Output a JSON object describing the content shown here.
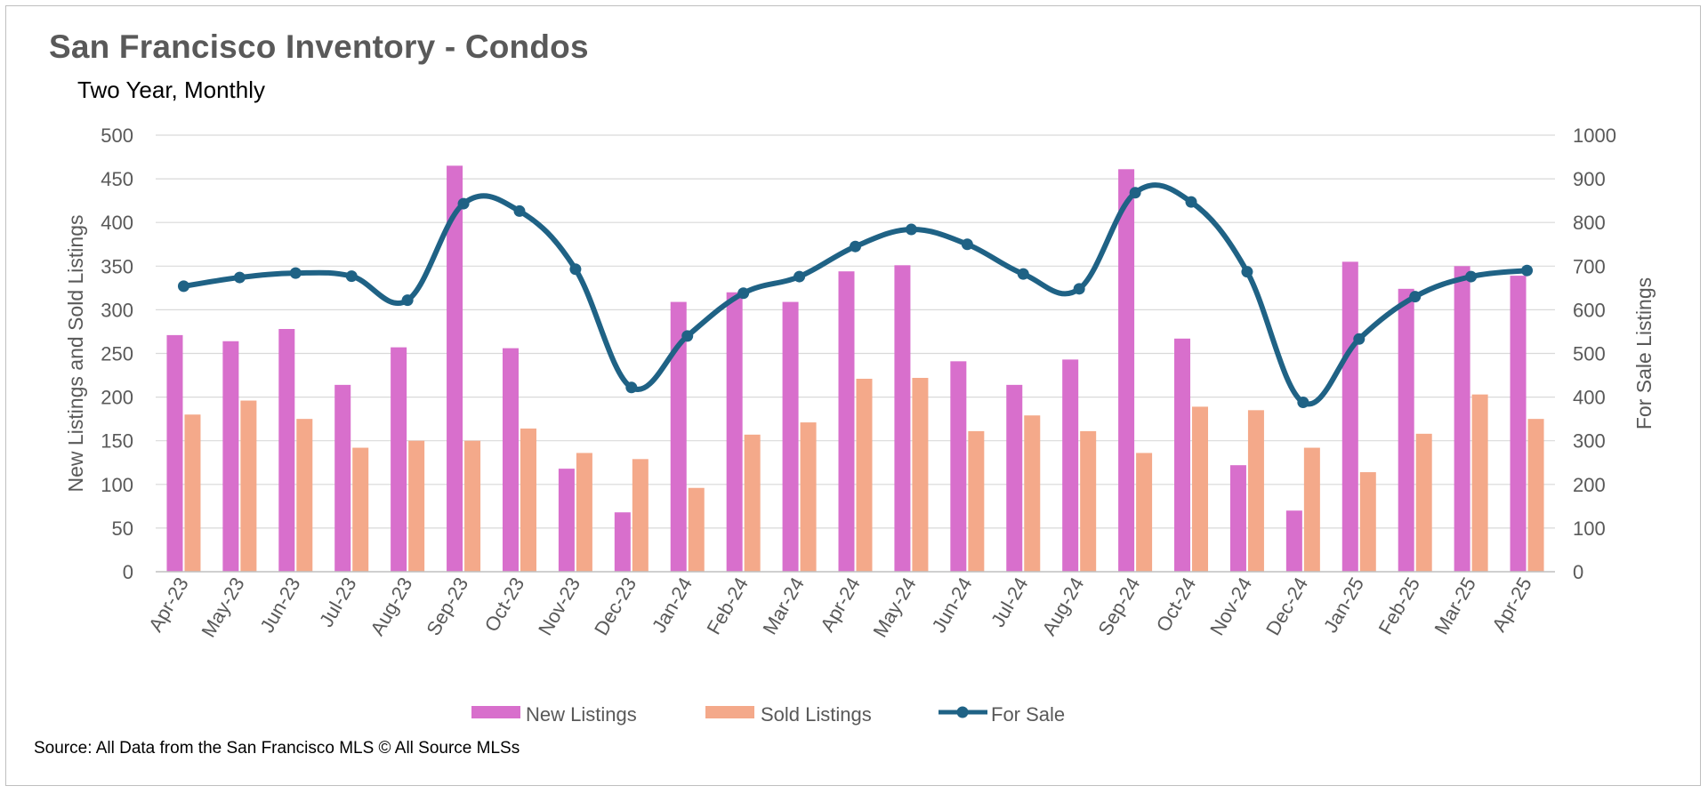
{
  "header": {
    "title": "San Francisco  Inventory - Condos",
    "subtitle": "Two Year, Monthly"
  },
  "footer": {
    "source": "Source: All Data from the San Francisco MLS © All Source MLSs"
  },
  "colors": {
    "new_listings": "#d86fcc",
    "sold_listings": "#f4a98a",
    "for_sale": "#1f6285",
    "grid": "#d9d9d9",
    "axis_text": "#595959"
  },
  "chart_data": {
    "type": "bar",
    "title": "San Francisco  Inventory - Condos",
    "subtitle": "Two Year, Monthly",
    "categories": [
      "Apr-23",
      "May-23",
      "Jun-23",
      "Jul-23",
      "Aug-23",
      "Sep-23",
      "Oct-23",
      "Nov-23",
      "Dec-23",
      "Jan-24",
      "Feb-24",
      "Mar-24",
      "Apr-24",
      "May-24",
      "Jun-24",
      "Jul-24",
      "Aug-24",
      "Sep-24",
      "Oct-24",
      "Nov-24",
      "Dec-24",
      "Jan-25",
      "Feb-25",
      "Mar-25",
      "Apr-25"
    ],
    "ylabel": "New Listings and Sold Listings",
    "y2label": "For Sale Listings",
    "ylim": [
      0,
      500
    ],
    "y2lim": [
      0,
      1000
    ],
    "yticks": [
      "0",
      "50",
      "100",
      "150",
      "200",
      "250",
      "300",
      "350",
      "400",
      "450",
      "500"
    ],
    "y2ticks": [
      "0",
      "100",
      "200",
      "300",
      "400",
      "500",
      "600",
      "700",
      "800",
      "900",
      "1000"
    ],
    "grid": true,
    "legend_position": "bottom",
    "series": [
      {
        "name": "New Listings",
        "type": "bar",
        "axis": "left",
        "values": [
          271,
          264,
          278,
          214,
          257,
          465,
          256,
          118,
          68,
          309,
          320,
          309,
          344,
          351,
          241,
          214,
          243,
          461,
          267,
          122,
          70,
          355,
          324,
          350,
          339
        ]
      },
      {
        "name": "Sold Listings",
        "type": "bar",
        "axis": "left",
        "values": [
          180,
          196,
          175,
          142,
          150,
          150,
          164,
          136,
          129,
          96,
          157,
          171,
          221,
          222,
          161,
          179,
          161,
          136,
          189,
          185,
          142,
          114,
          158,
          203,
          175
        ]
      },
      {
        "name": "For Sale",
        "type": "line",
        "axis": "right",
        "values": [
          654,
          674,
          684,
          677,
          622,
          843,
          826,
          693,
          422,
          540,
          638,
          676,
          745,
          784,
          750,
          682,
          648,
          868,
          847,
          687,
          388,
          533,
          630,
          676,
          690
        ]
      }
    ]
  }
}
